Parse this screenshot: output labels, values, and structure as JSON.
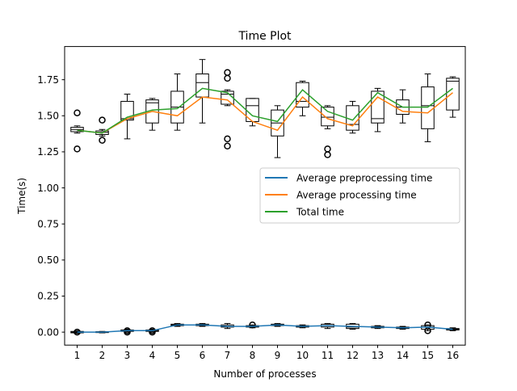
{
  "chart_data": {
    "type": "line",
    "title": "Time Plot",
    "xlabel": "Number of processes",
    "ylabel": "Time(s)",
    "categories": [
      "1",
      "2",
      "3",
      "4",
      "5",
      "6",
      "7",
      "8",
      "9",
      "10",
      "11",
      "12",
      "13",
      "14",
      "15",
      "16"
    ],
    "ylim": [
      -0.09,
      1.98
    ],
    "yticks": [
      "0.00",
      "0.25",
      "0.50",
      "0.75",
      "1.00",
      "1.25",
      "1.50",
      "1.75"
    ],
    "grid": false,
    "legend_position": "center-right",
    "series": [
      {
        "name": "Average preprocessing time",
        "color": "#1f77b4",
        "values": [
          0.0,
          0.0,
          0.01,
          0.01,
          0.05,
          0.05,
          0.04,
          0.04,
          0.05,
          0.04,
          0.045,
          0.04,
          0.035,
          0.03,
          0.035,
          0.02
        ]
      },
      {
        "name": "Average processing time",
        "color": "#ff7f0e",
        "values": [
          1.4,
          1.38,
          1.48,
          1.53,
          1.5,
          1.63,
          1.61,
          1.46,
          1.4,
          1.63,
          1.48,
          1.43,
          1.63,
          1.53,
          1.52,
          1.66
        ]
      },
      {
        "name": "Total time",
        "color": "#2ca02c",
        "values": [
          1.4,
          1.38,
          1.49,
          1.54,
          1.55,
          1.69,
          1.66,
          1.5,
          1.46,
          1.68,
          1.53,
          1.47,
          1.66,
          1.56,
          1.56,
          1.69
        ]
      }
    ],
    "boxplots": {
      "upper": [
        {
          "q1": 1.39,
          "median": 1.405,
          "q3": 1.42,
          "whisker_low": 1.38,
          "whisker_high": 1.43,
          "outliers": [
            1.52,
            1.27
          ]
        },
        {
          "q1": 1.37,
          "median": 1.385,
          "q3": 1.395,
          "whisker_low": 1.36,
          "whisker_high": 1.405,
          "outliers": [
            1.47,
            1.33
          ]
        },
        {
          "q1": 1.47,
          "median": 1.48,
          "q3": 1.6,
          "whisker_low": 1.34,
          "whisker_high": 1.65,
          "outliers": []
        },
        {
          "q1": 1.45,
          "median": 1.59,
          "q3": 1.61,
          "whisker_low": 1.4,
          "whisker_high": 1.62,
          "outliers": []
        },
        {
          "q1": 1.45,
          "median": 1.56,
          "q3": 1.67,
          "whisker_low": 1.4,
          "whisker_high": 1.79,
          "outliers": []
        },
        {
          "q1": 1.63,
          "median": 1.73,
          "q3": 1.79,
          "whisker_low": 1.45,
          "whisker_high": 1.89,
          "outliers": []
        },
        {
          "q1": 1.58,
          "median": 1.65,
          "q3": 1.67,
          "whisker_low": 1.57,
          "whisker_high": 1.68,
          "outliers": [
            1.8,
            1.76,
            1.34,
            1.29
          ]
        },
        {
          "q1": 1.46,
          "median": 1.57,
          "q3": 1.62,
          "whisker_low": 1.43,
          "whisker_high": 1.62,
          "outliers": []
        },
        {
          "q1": 1.36,
          "median": 1.45,
          "q3": 1.54,
          "whisker_low": 1.21,
          "whisker_high": 1.57,
          "outliers": []
        },
        {
          "q1": 1.56,
          "median": 1.6,
          "q3": 1.73,
          "whisker_low": 1.5,
          "whisker_high": 1.74,
          "outliers": []
        },
        {
          "q1": 1.43,
          "median": 1.49,
          "q3": 1.56,
          "whisker_low": 1.41,
          "whisker_high": 1.57,
          "outliers": [
            1.27,
            1.23
          ]
        },
        {
          "q1": 1.4,
          "median": 1.44,
          "q3": 1.57,
          "whisker_low": 1.38,
          "whisker_high": 1.6,
          "outliers": []
        },
        {
          "q1": 1.45,
          "median": 1.48,
          "q3": 1.67,
          "whisker_low": 1.39,
          "whisker_high": 1.69,
          "outliers": []
        },
        {
          "q1": 1.51,
          "median": 1.56,
          "q3": 1.61,
          "whisker_low": 1.45,
          "whisker_high": 1.68,
          "outliers": []
        },
        {
          "q1": 1.41,
          "median": 1.57,
          "q3": 1.7,
          "whisker_low": 1.32,
          "whisker_high": 1.79,
          "outliers": []
        },
        {
          "q1": 1.54,
          "median": 1.74,
          "q3": 1.76,
          "whisker_low": 1.49,
          "whisker_high": 1.77,
          "outliers": []
        }
      ],
      "lower": [
        {
          "q1": -0.005,
          "median": 0.0,
          "q3": 0.005,
          "whisker_low": -0.01,
          "whisker_high": 0.01,
          "outliers": [
            0.0
          ]
        },
        {
          "q1": -0.003,
          "median": 0.0,
          "q3": 0.003,
          "whisker_low": -0.005,
          "whisker_high": 0.005,
          "outliers": []
        },
        {
          "q1": 0.005,
          "median": 0.01,
          "q3": 0.015,
          "whisker_low": 0.0,
          "whisker_high": 0.02,
          "outliers": [
            0.0,
            0.01
          ]
        },
        {
          "q1": 0.005,
          "median": 0.01,
          "q3": 0.015,
          "whisker_low": 0.0,
          "whisker_high": 0.02,
          "outliers": [
            0.0,
            0.01
          ]
        },
        {
          "q1": 0.045,
          "median": 0.05,
          "q3": 0.055,
          "whisker_low": 0.04,
          "whisker_high": 0.06,
          "outliers": []
        },
        {
          "q1": 0.045,
          "median": 0.05,
          "q3": 0.055,
          "whisker_low": 0.04,
          "whisker_high": 0.06,
          "outliers": []
        },
        {
          "q1": 0.035,
          "median": 0.04,
          "q3": 0.05,
          "whisker_low": 0.025,
          "whisker_high": 0.06,
          "outliers": []
        },
        {
          "q1": 0.035,
          "median": 0.04,
          "q3": 0.045,
          "whisker_low": 0.03,
          "whisker_high": 0.05,
          "outliers": [
            0.05
          ]
        },
        {
          "q1": 0.045,
          "median": 0.05,
          "q3": 0.055,
          "whisker_low": 0.04,
          "whisker_high": 0.06,
          "outliers": []
        },
        {
          "q1": 0.035,
          "median": 0.04,
          "q3": 0.045,
          "whisker_low": 0.03,
          "whisker_high": 0.05,
          "outliers": []
        },
        {
          "q1": 0.035,
          "median": 0.045,
          "q3": 0.055,
          "whisker_low": 0.025,
          "whisker_high": 0.06,
          "outliers": []
        },
        {
          "q1": 0.025,
          "median": 0.035,
          "q3": 0.055,
          "whisker_low": 0.02,
          "whisker_high": 0.06,
          "outliers": []
        },
        {
          "q1": 0.03,
          "median": 0.035,
          "q3": 0.04,
          "whisker_low": 0.025,
          "whisker_high": 0.045,
          "outliers": []
        },
        {
          "q1": 0.025,
          "median": 0.03,
          "q3": 0.035,
          "whisker_low": 0.02,
          "whisker_high": 0.04,
          "outliers": []
        },
        {
          "q1": 0.02,
          "median": 0.035,
          "q3": 0.045,
          "whisker_low": 0.01,
          "whisker_high": 0.05,
          "outliers": [
            0.01,
            0.05
          ]
        },
        {
          "q1": 0.015,
          "median": 0.02,
          "q3": 0.025,
          "whisker_low": 0.01,
          "whisker_high": 0.03,
          "outliers": []
        }
      ]
    }
  }
}
